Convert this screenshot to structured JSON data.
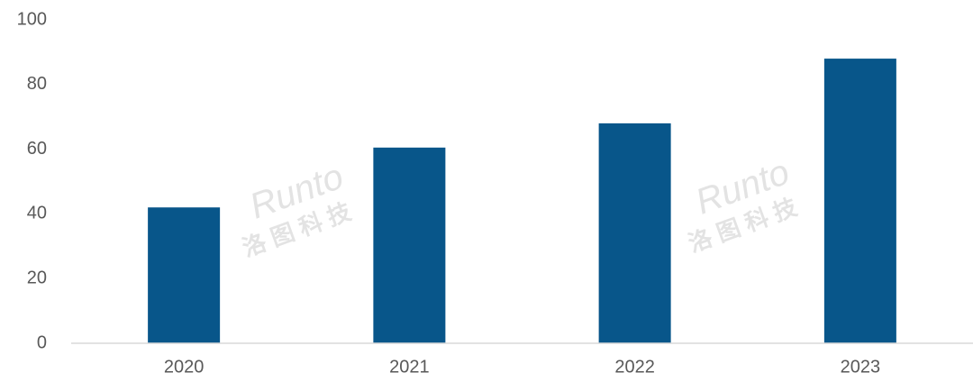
{
  "chart_data": {
    "type": "bar",
    "categories": [
      "2020",
      "2021",
      "2022",
      "2023"
    ],
    "values": [
      42,
      60.5,
      68,
      88
    ],
    "color": "#08568a",
    "ylim": [
      0,
      100
    ],
    "yticks": [
      0,
      20,
      40,
      60,
      80,
      100
    ],
    "grid": false,
    "watermark": [
      "Runto",
      "洛 图 科 技"
    ]
  }
}
